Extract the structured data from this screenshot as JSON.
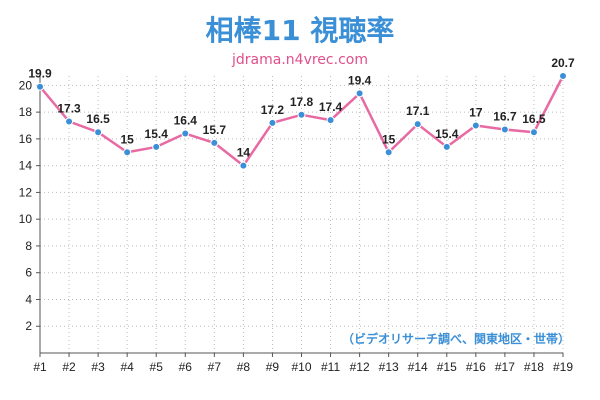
{
  "colors": {
    "title": "#3a8fd6",
    "subtitle": "#e0508a",
    "line": "#e86aa2",
    "marker": "#3a8fd6",
    "grid": "#bbbbbb",
    "note": "#3a8fd6"
  },
  "chart_data": {
    "type": "line",
    "title": "相棒11 視聴率",
    "subtitle": "jdrama.n4vrec.com",
    "annotation": "（ビデオリサーチ調べ、関東地区・世帯）",
    "categories": [
      "#1",
      "#2",
      "#3",
      "#4",
      "#5",
      "#6",
      "#7",
      "#8",
      "#9",
      "#10",
      "#11",
      "#12",
      "#13",
      "#14",
      "#15",
      "#16",
      "#17",
      "#18",
      "#19"
    ],
    "values": [
      19.9,
      17.3,
      16.5,
      15,
      15.4,
      16.4,
      15.7,
      14,
      17.2,
      17.8,
      17.4,
      19.4,
      15,
      17.1,
      15.4,
      17,
      16.7,
      16.5,
      20.7
    ],
    "value_labels": [
      "19.9",
      "17.3",
      "16.5",
      "15",
      "15.4",
      "16.4",
      "15.7",
      "14",
      "17.2",
      "17.8",
      "17.4",
      "19.4",
      "15",
      "17.1",
      "15.4",
      "17",
      "16.7",
      "16.5",
      "20.7"
    ],
    "y_ticks": [
      "2",
      "4",
      "6",
      "8",
      "10",
      "12",
      "14",
      "16",
      "18",
      "20"
    ],
    "ylim": [
      0,
      20.7
    ],
    "grid": "dotted vertical and horizontal",
    "legend": "none"
  }
}
